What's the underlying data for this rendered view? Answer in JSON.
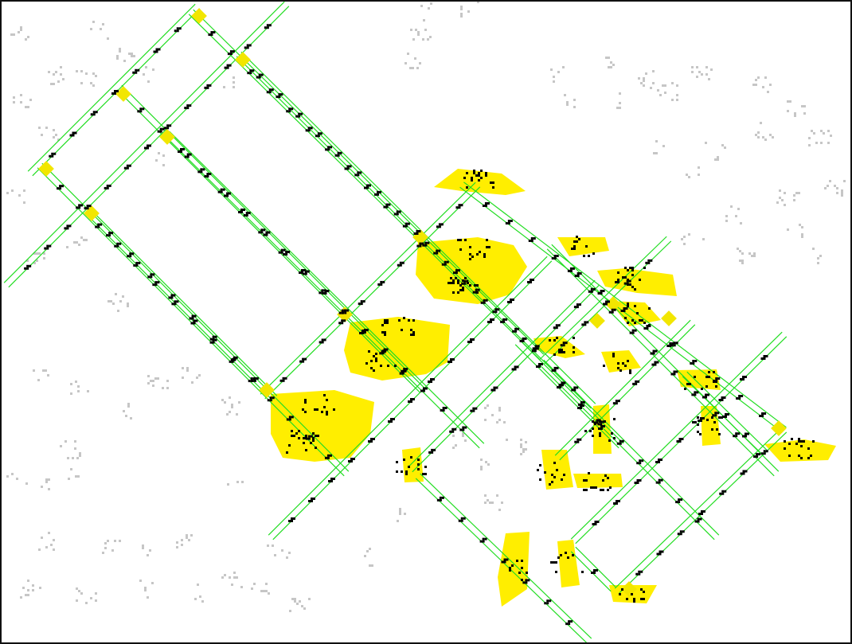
{
  "app": {
    "view": "pattern-canvas"
  },
  "colors": {
    "background": "#ffffff",
    "frame": "#111111",
    "lane": "#22dd22",
    "junction": "#f2e600",
    "active_cell": "#000000",
    "highlight_blob": "#ffee00",
    "ghost_cell": "#c6c6c6"
  },
  "icons": {
    "ghost_debris": "square-pixel-cluster-icon",
    "glider": "glider-icon",
    "still_life": "block-icon",
    "junction": "yellow-square-icon"
  }
}
